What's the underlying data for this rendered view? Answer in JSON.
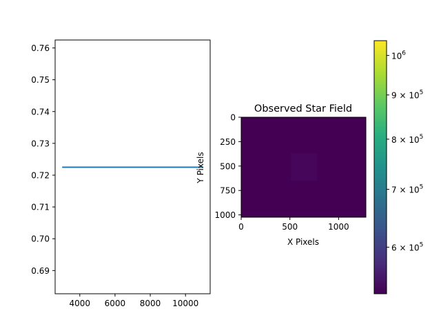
{
  "chart_data": [
    {
      "type": "line",
      "title": "",
      "xlabel": "",
      "ylabel": "",
      "xlim": [
        2600,
        11400
      ],
      "ylim": [
        0.6827,
        0.7625
      ],
      "x_ticks": [
        4000,
        6000,
        8000,
        10000
      ],
      "x_tick_labels": [
        "4000",
        "6000",
        "8000",
        "10000"
      ],
      "y_ticks": [
        0.69,
        0.7,
        0.71,
        0.72,
        0.73,
        0.74,
        0.75,
        0.76
      ],
      "y_tick_labels": [
        "0.69",
        "0.70",
        "0.71",
        "0.72",
        "0.73",
        "0.74",
        "0.75",
        "0.76"
      ],
      "series": [
        {
          "x": [
            3000,
            11000
          ],
          "y": [
            0.7225,
            0.7225
          ],
          "color": "#1f77b4"
        }
      ],
      "grid": false
    },
    {
      "type": "heatmap",
      "title": "Observed Star Field",
      "xlabel": "X Pixels",
      "ylabel": "Y Pixels",
      "xlim": [
        0,
        1280
      ],
      "ylim": [
        1024,
        0
      ],
      "x_ticks": [
        0,
        500,
        1000
      ],
      "x_tick_labels": [
        "0",
        "500",
        "1000"
      ],
      "y_ticks": [
        0,
        250,
        500,
        750,
        1000
      ],
      "y_tick_labels": [
        "0",
        "250",
        "500",
        "750",
        "1000"
      ],
      "background_color": "#440154",
      "patch": {
        "x": [
          510,
          780
        ],
        "y": [
          370,
          650
        ],
        "color": "#46075a"
      },
      "colormap": "viridis",
      "colorbar": {
        "scale": "log",
        "range": [
          530000,
          1040000
        ],
        "ticks": [
          {
            "value": 600000,
            "mantissa": "6",
            "times": "×",
            "base": "10",
            "exp": "5"
          },
          {
            "value": 700000,
            "mantissa": "7",
            "times": "×",
            "base": "10",
            "exp": "5"
          },
          {
            "value": 800000,
            "mantissa": "8",
            "times": "×",
            "base": "10",
            "exp": "5"
          },
          {
            "value": 900000,
            "mantissa": "9",
            "times": "×",
            "base": "10",
            "exp": "5"
          },
          {
            "value": 1000000,
            "mantissa": "",
            "times": "",
            "base": "10",
            "exp": "6"
          }
        ]
      }
    }
  ]
}
